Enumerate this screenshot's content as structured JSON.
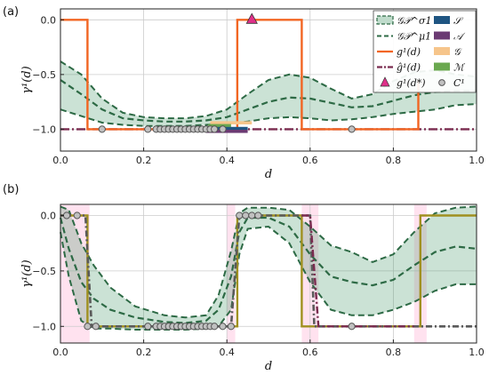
{
  "colors": {
    "band": "#2e8b57",
    "mean": "#2d6a45",
    "true": "#f26522",
    "surrogate": "#7a2b4f",
    "S": "#1f5582",
    "A": "#6b3a73",
    "G": "#f6c58b",
    "M": "#6aa84f",
    "obs_face": "#c0c0c0",
    "obs_edge": "#555555",
    "triangle": "#e0308a",
    "gray_dashdot": "#5a5a5a",
    "olive": "#a09020",
    "pink": "#ffd6e8",
    "grid": "#cccccc"
  },
  "chart_data": [
    {
      "panel_label": "(a)",
      "type": "line",
      "xlabel": "d",
      "ylabel": "γ¹(d)",
      "xlim": [
        0,
        1
      ],
      "ylim": [
        -1.2,
        0.1
      ],
      "xticks": [
        "0.0",
        "0.2",
        "0.4",
        "0.6",
        "0.8",
        "1.0"
      ],
      "yticks": [
        "0.0",
        "−0.5",
        "−1.0"
      ],
      "ytick_values": [
        0,
        -0.5,
        -1
      ],
      "grid": true,
      "legend_position": "top-right",
      "legend": [
        {
          "key": "band",
          "label": "𝒢𝒫^σ1",
          "kind": "patch"
        },
        {
          "key": "mean",
          "label": "𝒢𝒫^μ1",
          "kind": "dashed"
        },
        {
          "key": "true",
          "label": "g¹(d)",
          "kind": "line"
        },
        {
          "key": "surrogate",
          "label": "ĝ¹(d)",
          "kind": "dashdot"
        },
        {
          "key": "triangle",
          "label": "g¹(d*)",
          "kind": "triangle"
        },
        {
          "key": "S",
          "label": "𝒮",
          "kind": "patch"
        },
        {
          "key": "A",
          "label": "𝒜",
          "kind": "patch"
        },
        {
          "key": "G",
          "label": "𝒢",
          "kind": "patch"
        },
        {
          "key": "M",
          "label": "ℳ",
          "kind": "patch"
        },
        {
          "key": "obs",
          "label": "C¹",
          "kind": "dot"
        }
      ],
      "series": {
        "true": [
          [
            0,
            0
          ],
          [
            0.065,
            0
          ],
          [
            0.065,
            -1
          ],
          [
            0.425,
            -1
          ],
          [
            0.425,
            0
          ],
          [
            0.58,
            0
          ],
          [
            0.58,
            -1
          ],
          [
            0.86,
            -1
          ],
          [
            0.86,
            -0.55
          ]
        ],
        "surrogate": [
          [
            0,
            -1
          ],
          [
            1,
            -1
          ]
        ],
        "mean": [
          [
            0,
            -0.55
          ],
          [
            0.05,
            -0.68
          ],
          [
            0.1,
            -0.82
          ],
          [
            0.15,
            -0.9
          ],
          [
            0.2,
            -0.92
          ],
          [
            0.25,
            -0.93
          ],
          [
            0.3,
            -0.93
          ],
          [
            0.35,
            -0.92
          ],
          [
            0.4,
            -0.89
          ],
          [
            0.45,
            -0.82
          ],
          [
            0.5,
            -0.75
          ],
          [
            0.55,
            -0.71
          ],
          [
            0.6,
            -0.72
          ],
          [
            0.65,
            -0.76
          ],
          [
            0.7,
            -0.8
          ],
          [
            0.75,
            -0.79
          ],
          [
            0.8,
            -0.74
          ],
          [
            0.85,
            -0.69
          ],
          [
            0.9,
            -0.66
          ],
          [
            0.95,
            -0.65
          ],
          [
            1,
            -0.65
          ]
        ],
        "upper": [
          [
            0,
            -0.38
          ],
          [
            0.05,
            -0.5
          ],
          [
            0.1,
            -0.72
          ],
          [
            0.15,
            -0.85
          ],
          [
            0.2,
            -0.89
          ],
          [
            0.25,
            -0.9
          ],
          [
            0.3,
            -0.9
          ],
          [
            0.35,
            -0.88
          ],
          [
            0.4,
            -0.82
          ],
          [
            0.45,
            -0.68
          ],
          [
            0.5,
            -0.55
          ],
          [
            0.55,
            -0.5
          ],
          [
            0.6,
            -0.53
          ],
          [
            0.65,
            -0.63
          ],
          [
            0.7,
            -0.72
          ],
          [
            0.75,
            -0.68
          ],
          [
            0.8,
            -0.56
          ],
          [
            0.85,
            -0.48
          ],
          [
            0.9,
            -0.46
          ],
          [
            0.95,
            -0.5
          ],
          [
            1,
            -0.52
          ]
        ],
        "lower": [
          [
            0,
            -0.82
          ],
          [
            0.05,
            -0.88
          ],
          [
            0.1,
            -0.94
          ],
          [
            0.15,
            -0.96
          ],
          [
            0.2,
            -0.97
          ],
          [
            0.25,
            -0.97
          ],
          [
            0.3,
            -0.97
          ],
          [
            0.35,
            -0.96
          ],
          [
            0.4,
            -0.95
          ],
          [
            0.45,
            -0.93
          ],
          [
            0.5,
            -0.9
          ],
          [
            0.55,
            -0.89
          ],
          [
            0.6,
            -0.9
          ],
          [
            0.65,
            -0.92
          ],
          [
            0.7,
            -0.91
          ],
          [
            0.75,
            -0.89
          ],
          [
            0.8,
            -0.86
          ],
          [
            0.85,
            -0.84
          ],
          [
            0.9,
            -0.82
          ],
          [
            0.95,
            -0.78
          ],
          [
            1,
            -0.77
          ]
        ]
      },
      "observations_x": [
        0.1,
        0.21,
        0.23,
        0.24,
        0.25,
        0.26,
        0.27,
        0.28,
        0.29,
        0.3,
        0.31,
        0.32,
        0.33,
        0.34,
        0.35,
        0.36,
        0.37,
        0.39,
        0.7
      ],
      "observations_y": -1,
      "star_point": [
        0.46,
        0
      ],
      "strips": [
        {
          "key": "G",
          "x0": 0.36,
          "x1": 0.46
        },
        {
          "key": "M",
          "x0": 0.355,
          "x1": 0.41
        },
        {
          "key": "S",
          "x0": 0.36,
          "x1": 0.45
        },
        {
          "key": "A",
          "x0": 0.35,
          "x1": 0.45
        }
      ]
    },
    {
      "panel_label": "(b)",
      "type": "line",
      "xlabel": "d",
      "ylabel": "γ¹(d)",
      "xlim": [
        0,
        1
      ],
      "ylim": [
        -1.15,
        0.1
      ],
      "xticks": [
        "0.0",
        "0.2",
        "0.4",
        "0.6",
        "0.8",
        "1.0"
      ],
      "yticks": [
        "0.0",
        "−0.5",
        "−1.0"
      ],
      "ytick_values": [
        0,
        -0.5,
        -1
      ],
      "grid": true,
      "pink_regions": [
        [
          0,
          0.07
        ],
        [
          0.4,
          0.42
        ],
        [
          0.58,
          0.62
        ],
        [
          0.85,
          0.88
        ]
      ],
      "series": {
        "olive": [
          [
            0,
            0
          ],
          [
            0.065,
            0
          ],
          [
            0.065,
            -1
          ],
          [
            0.425,
            -1
          ],
          [
            0.425,
            0
          ],
          [
            0.58,
            0
          ],
          [
            0.58,
            -1
          ],
          [
            0.865,
            -1
          ],
          [
            0.865,
            0
          ],
          [
            1,
            0
          ]
        ],
        "gray_dashdot": [
          [
            0,
            0
          ],
          [
            0.06,
            0
          ],
          [
            0.075,
            -1
          ],
          [
            0.41,
            -1
          ],
          [
            0.43,
            0
          ],
          [
            0.6,
            0
          ],
          [
            0.61,
            -1
          ],
          [
            1,
            -1
          ]
        ],
        "surrogate": [
          [
            0.58,
            0
          ],
          [
            0.6,
            0
          ],
          [
            0.62,
            -1
          ],
          [
            0.85,
            -1
          ]
        ],
        "mean": [
          [
            0,
            -0.02
          ],
          [
            0.02,
            -0.3
          ],
          [
            0.05,
            -0.6
          ],
          [
            0.08,
            -0.75
          ],
          [
            0.12,
            -0.85
          ],
          [
            0.18,
            -0.92
          ],
          [
            0.25,
            -0.96
          ],
          [
            0.3,
            -0.97
          ],
          [
            0.35,
            -0.95
          ],
          [
            0.38,
            -0.85
          ],
          [
            0.41,
            -0.55
          ],
          [
            0.43,
            -0.15
          ],
          [
            0.45,
            -0.02
          ],
          [
            0.5,
            -0.02
          ],
          [
            0.55,
            -0.1
          ],
          [
            0.6,
            -0.35
          ],
          [
            0.65,
            -0.55
          ],
          [
            0.7,
            -0.6
          ],
          [
            0.75,
            -0.63
          ],
          [
            0.8,
            -0.58
          ],
          [
            0.85,
            -0.45
          ],
          [
            0.9,
            -0.33
          ],
          [
            0.95,
            -0.28
          ],
          [
            1,
            -0.3
          ]
        ],
        "upper": [
          [
            0,
            0.08
          ],
          [
            0.02,
            0.05
          ],
          [
            0.05,
            -0.25
          ],
          [
            0.08,
            -0.45
          ],
          [
            0.12,
            -0.65
          ],
          [
            0.18,
            -0.82
          ],
          [
            0.25,
            -0.9
          ],
          [
            0.3,
            -0.92
          ],
          [
            0.35,
            -0.9
          ],
          [
            0.38,
            -0.72
          ],
          [
            0.41,
            -0.32
          ],
          [
            0.43,
            0.02
          ],
          [
            0.45,
            0.07
          ],
          [
            0.5,
            0.07
          ],
          [
            0.55,
            0.05
          ],
          [
            0.6,
            -0.1
          ],
          [
            0.65,
            -0.27
          ],
          [
            0.7,
            -0.33
          ],
          [
            0.75,
            -0.42
          ],
          [
            0.8,
            -0.35
          ],
          [
            0.85,
            -0.15
          ],
          [
            0.9,
            0.02
          ],
          [
            0.95,
            0.07
          ],
          [
            1,
            0.08
          ]
        ],
        "lower": [
          [
            0,
            -0.15
          ],
          [
            0.02,
            -0.55
          ],
          [
            0.05,
            -0.95
          ],
          [
            0.08,
            -1.02
          ],
          [
            0.12,
            -1.02
          ],
          [
            0.18,
            -1.03
          ],
          [
            0.25,
            -1.03
          ],
          [
            0.3,
            -1.03
          ],
          [
            0.35,
            -1.02
          ],
          [
            0.38,
            -1.0
          ],
          [
            0.41,
            -0.85
          ],
          [
            0.43,
            -0.35
          ],
          [
            0.45,
            -0.12
          ],
          [
            0.5,
            -0.1
          ],
          [
            0.55,
            -0.25
          ],
          [
            0.6,
            -0.6
          ],
          [
            0.65,
            -0.85
          ],
          [
            0.7,
            -0.9
          ],
          [
            0.75,
            -0.9
          ],
          [
            0.8,
            -0.85
          ],
          [
            0.85,
            -0.78
          ],
          [
            0.9,
            -0.68
          ],
          [
            0.95,
            -0.62
          ],
          [
            1,
            -0.62
          ]
        ]
      },
      "observations": [
        [
          0.015,
          0
        ],
        [
          0.04,
          0
        ],
        [
          0.065,
          -1
        ],
        [
          0.085,
          -1
        ],
        [
          0.21,
          -1
        ],
        [
          0.23,
          -1
        ],
        [
          0.24,
          -1
        ],
        [
          0.25,
          -1
        ],
        [
          0.26,
          -1
        ],
        [
          0.27,
          -1
        ],
        [
          0.28,
          -1
        ],
        [
          0.29,
          -1
        ],
        [
          0.3,
          -1
        ],
        [
          0.31,
          -1
        ],
        [
          0.32,
          -1
        ],
        [
          0.33,
          -1
        ],
        [
          0.34,
          -1
        ],
        [
          0.35,
          -1
        ],
        [
          0.36,
          -1
        ],
        [
          0.37,
          -1
        ],
        [
          0.39,
          -1
        ],
        [
          0.41,
          -1
        ],
        [
          0.43,
          0
        ],
        [
          0.445,
          0
        ],
        [
          0.46,
          0
        ],
        [
          0.475,
          0
        ],
        [
          0.7,
          -1
        ]
      ]
    }
  ]
}
